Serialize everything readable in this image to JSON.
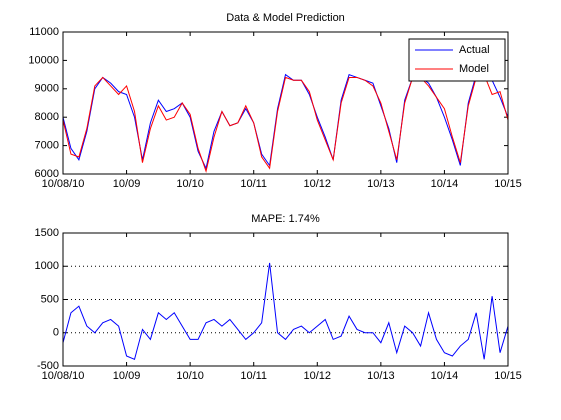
{
  "chart_data": [
    {
      "type": "line",
      "title": "Data & Model Prediction",
      "x": [
        0,
        0.125,
        0.25,
        0.375,
        0.5,
        0.625,
        0.75,
        0.875,
        1,
        1.125,
        1.25,
        1.375,
        1.5,
        1.625,
        1.75,
        1.875,
        2,
        2.125,
        2.25,
        2.375,
        2.5,
        2.625,
        2.75,
        2.875,
        3,
        3.125,
        3.25,
        3.375,
        3.5,
        3.625,
        3.75,
        3.875,
        4,
        4.125,
        4.25,
        4.375,
        4.5,
        4.625,
        4.75,
        4.875,
        5,
        5.125,
        5.25,
        5.375,
        5.5,
        5.625,
        5.75,
        5.875,
        6,
        6.125,
        6.25,
        6.375,
        6.5,
        6.625,
        6.75,
        6.875,
        7
      ],
      "series": [
        {
          "name": "Actual",
          "color": "#0000ff",
          "values": [
            8000,
            6900,
            6500,
            7500,
            9000,
            9400,
            9200,
            8900,
            8800,
            8000,
            6500,
            7800,
            8600,
            8200,
            8300,
            8500,
            8000,
            6800,
            6200,
            7500,
            8200,
            7700,
            7800,
            8300,
            7800,
            6700,
            6300,
            8300,
            9500,
            9300,
            9300,
            8800,
            8000,
            7300,
            6500,
            8600,
            9500,
            9400,
            9300,
            9200,
            8400,
            7600,
            6400,
            8600,
            9400,
            9400,
            9200,
            8700,
            8000,
            7200,
            6300,
            8500,
            9500,
            9400,
            9300,
            8700,
            8000
          ]
        },
        {
          "name": "Model",
          "color": "#ff0000",
          "values": [
            7900,
            6700,
            6600,
            7600,
            9100,
            9400,
            9100,
            8800,
            9100,
            8200,
            6400,
            7600,
            8400,
            7900,
            8000,
            8500,
            8100,
            6900,
            6100,
            7300,
            8200,
            7700,
            7800,
            8400,
            7800,
            6600,
            6200,
            8200,
            9400,
            9300,
            9300,
            8900,
            7900,
            7200,
            6500,
            8500,
            9400,
            9400,
            9300,
            9100,
            8500,
            7500,
            6500,
            8500,
            9400,
            9400,
            9100,
            8700,
            8300,
            7300,
            6400,
            8400,
            9400,
            9500,
            8800,
            8900,
            7900
          ]
        }
      ],
      "xlim": [
        0,
        7
      ],
      "ylim": [
        6000,
        11000
      ],
      "xticks": [
        {
          "value": 0,
          "label": "10/08/10"
        },
        {
          "value": 1,
          "label": "10/09"
        },
        {
          "value": 2,
          "label": "10/10"
        },
        {
          "value": 3,
          "label": "10/11"
        },
        {
          "value": 4,
          "label": "10/12"
        },
        {
          "value": 5,
          "label": "10/13"
        },
        {
          "value": 6,
          "label": "10/14"
        },
        {
          "value": 7,
          "label": "10/15"
        }
      ],
      "yticks": [
        6000,
        7000,
        8000,
        9000,
        10000,
        11000
      ],
      "grid": false,
      "legend": "upper right"
    },
    {
      "type": "line",
      "title": "MAPE: 1.74%",
      "x": [
        0,
        0.125,
        0.25,
        0.375,
        0.5,
        0.625,
        0.75,
        0.875,
        1,
        1.125,
        1.25,
        1.375,
        1.5,
        1.625,
        1.75,
        1.875,
        2,
        2.125,
        2.25,
        2.375,
        2.5,
        2.625,
        2.75,
        2.875,
        3,
        3.125,
        3.25,
        3.375,
        3.5,
        3.625,
        3.75,
        3.875,
        4,
        4.125,
        4.25,
        4.375,
        4.5,
        4.625,
        4.75,
        4.875,
        5,
        5.125,
        5.25,
        5.375,
        5.5,
        5.625,
        5.75,
        5.875,
        6,
        6.125,
        6.25,
        6.375,
        6.5,
        6.625,
        6.75,
        6.875,
        7
      ],
      "series": [
        {
          "color": "#0000ff",
          "values": [
            -150,
            300,
            400,
            100,
            0,
            150,
            200,
            100,
            -350,
            -400,
            50,
            -100,
            300,
            200,
            300,
            100,
            -100,
            -100,
            150,
            200,
            100,
            200,
            50,
            -100,
            0,
            150,
            1050,
            0,
            -100,
            50,
            100,
            0,
            100,
            200,
            -100,
            -50,
            250,
            50,
            0,
            0,
            -150,
            150,
            -300,
            100,
            0,
            -200,
            300,
            -100,
            -300,
            -350,
            -200,
            -100,
            300,
            -400,
            550,
            -300,
            100
          ]
        }
      ],
      "xlim": [
        0,
        7
      ],
      "ylim": [
        -500,
        1500
      ],
      "xticks": [
        {
          "value": 0,
          "label": "10/08/10"
        },
        {
          "value": 1,
          "label": "10/09"
        },
        {
          "value": 2,
          "label": "10/10"
        },
        {
          "value": 3,
          "label": "10/11"
        },
        {
          "value": 4,
          "label": "10/12"
        },
        {
          "value": 5,
          "label": "10/13"
        },
        {
          "value": 6,
          "label": "10/14"
        },
        {
          "value": 7,
          "label": "10/15"
        }
      ],
      "yticks": [
        -500,
        0,
        500,
        1000,
        1500
      ],
      "grid": true
    }
  ]
}
